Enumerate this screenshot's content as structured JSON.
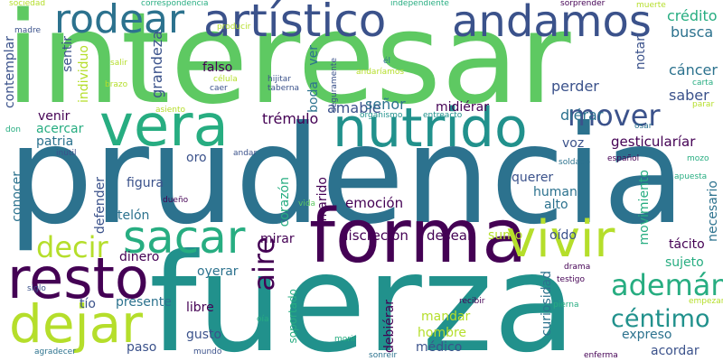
{
  "palette": {
    "background": "#ffffff",
    "dark_purple": "#440154",
    "indigo": "#3b528b",
    "blue": "#2c728e",
    "teal": "#21918c",
    "green": "#27ad81",
    "light_green": "#5ec962",
    "lime": "#b5de2b"
  },
  "words": [
    {
      "text": "interesar"
    },
    {
      "text": "prudencia"
    },
    {
      "text": "fuerza"
    },
    {
      "text": "artístico"
    },
    {
      "text": "andamos"
    },
    {
      "text": "rodear"
    },
    {
      "text": "vera"
    },
    {
      "text": "nutrido"
    },
    {
      "text": "forma"
    },
    {
      "text": "vivir"
    },
    {
      "text": "sacar"
    },
    {
      "text": "resto"
    },
    {
      "text": "dejar"
    },
    {
      "text": "mover"
    },
    {
      "text": "ademán"
    },
    {
      "text": "céntimo"
    },
    {
      "text": "decir"
    },
    {
      "text": "aire"
    },
    {
      "text": "crédito"
    },
    {
      "text": "busca"
    },
    {
      "text": "cáncer"
    },
    {
      "text": "saber"
    },
    {
      "text": "perder"
    },
    {
      "text": "midiérar"
    },
    {
      "text": "amable"
    },
    {
      "text": "señor"
    },
    {
      "text": "diérar"
    },
    {
      "text": "gesticularíar"
    },
    {
      "text": "trémulo"
    },
    {
      "text": "emoción"
    },
    {
      "text": "discreción"
    },
    {
      "text": "desear"
    },
    {
      "text": "sumo"
    },
    {
      "text": "oído"
    },
    {
      "text": "tácito"
    },
    {
      "text": "sujeto"
    },
    {
      "text": "querer"
    },
    {
      "text": "humano"
    },
    {
      "text": "alto"
    },
    {
      "text": "figura"
    },
    {
      "text": "telón"
    },
    {
      "text": "oro"
    },
    {
      "text": "mirar"
    },
    {
      "text": "dinero"
    },
    {
      "text": "oyerar"
    },
    {
      "text": "libre"
    },
    {
      "text": "gusto"
    },
    {
      "text": "paso"
    },
    {
      "text": "presente"
    },
    {
      "text": "tío"
    },
    {
      "text": "mandar"
    },
    {
      "text": "hombre"
    },
    {
      "text": "médico"
    },
    {
      "text": "expreso"
    },
    {
      "text": "acordar"
    },
    {
      "text": "debiérar"
    },
    {
      "text": "curiosidad"
    },
    {
      "text": "soportado"
    },
    {
      "text": "falso"
    },
    {
      "text": "grandeza"
    },
    {
      "text": "individuo"
    },
    {
      "text": "sentir"
    },
    {
      "text": "contemplar"
    },
    {
      "text": "venir"
    },
    {
      "text": "acercar"
    },
    {
      "text": "patria"
    },
    {
      "text": "conocer"
    },
    {
      "text": "defender"
    },
    {
      "text": "corazón"
    },
    {
      "text": "marido"
    },
    {
      "text": "boda"
    },
    {
      "text": "ver"
    },
    {
      "text": "voz"
    },
    {
      "text": "notar"
    },
    {
      "text": "movimiento"
    },
    {
      "text": "necesario"
    },
    {
      "text": "sociedad"
    },
    {
      "text": "correspondencia"
    },
    {
      "text": "independiente"
    },
    {
      "text": "sorprender"
    },
    {
      "text": "muerte"
    },
    {
      "text": "madre"
    },
    {
      "text": "producir"
    },
    {
      "text": "él"
    },
    {
      "text": "andaríamos"
    },
    {
      "text": "salir"
    },
    {
      "text": "hijitar"
    },
    {
      "text": "taberna"
    },
    {
      "text": "célula"
    },
    {
      "text": "caer"
    },
    {
      "text": "brazo"
    },
    {
      "text": "asiento"
    },
    {
      "text": "organismo"
    },
    {
      "text": "entreacto"
    },
    {
      "text": "seguramente"
    },
    {
      "text": "osar"
    },
    {
      "text": "carta"
    },
    {
      "text": "parar"
    },
    {
      "text": "don"
    },
    {
      "text": "inútil"
    },
    {
      "text": "andar"
    },
    {
      "text": "soldado"
    },
    {
      "text": "español"
    },
    {
      "text": "mozo"
    },
    {
      "text": "apuesta"
    },
    {
      "text": "vida"
    },
    {
      "text": "dueño"
    },
    {
      "text": "drama"
    },
    {
      "text": "testigo"
    },
    {
      "text": "recibir"
    },
    {
      "text": "pierna"
    },
    {
      "text": "empezar"
    },
    {
      "text": "oía"
    },
    {
      "text": "morir"
    },
    {
      "text": "sonreír"
    },
    {
      "text": "enferma"
    },
    {
      "text": "mundo"
    },
    {
      "text": "agradecer"
    },
    {
      "text": "siglo"
    }
  ]
}
